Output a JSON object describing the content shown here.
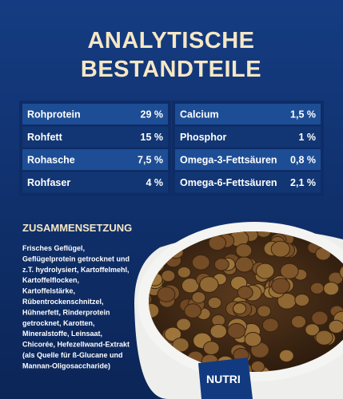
{
  "header": {
    "title_lines": [
      "ANALYTISCHE",
      "BESTANDTEILE"
    ]
  },
  "tables": [
    {
      "rows": [
        [
          "Rohprotein",
          "29 %"
        ],
        [
          "Rohfett",
          "15 %"
        ],
        [
          "Rohasche",
          "7,5 %"
        ],
        [
          "Rohfaser",
          "4 %"
        ]
      ]
    },
    {
      "rows": [
        [
          "Calcium",
          "1,5 %"
        ],
        [
          "Phosphor",
          "1 %"
        ],
        [
          "Omega-3-Fettsäuren",
          "0,8 %"
        ],
        [
          "Omega-6-Fettsäuren",
          "2,1 %"
        ]
      ]
    }
  ],
  "composition": {
    "title": "ZUSAMMENSETZUNG",
    "lines": [
      "Frisches Geflügel,",
      "Geflügelprotein getrocknet und",
      "z.T. hydrolysiert, Kartoffelmehl,",
      "Kartoffelflocken,",
      "Kartoffelstärke,",
      "Rübentrockenschnitzel,",
      "Hühnerfett, Rinderprotein",
      "getrocknet, Karotten,",
      "Mineralstoffe, Leinsaat,",
      "Chicorée, Hefezellwand-Extrakt",
      "(als Quelle für ß-Glucane und",
      "Mannan-Oligosaccharide)"
    ]
  },
  "bowl_label": "NUTRI"
}
